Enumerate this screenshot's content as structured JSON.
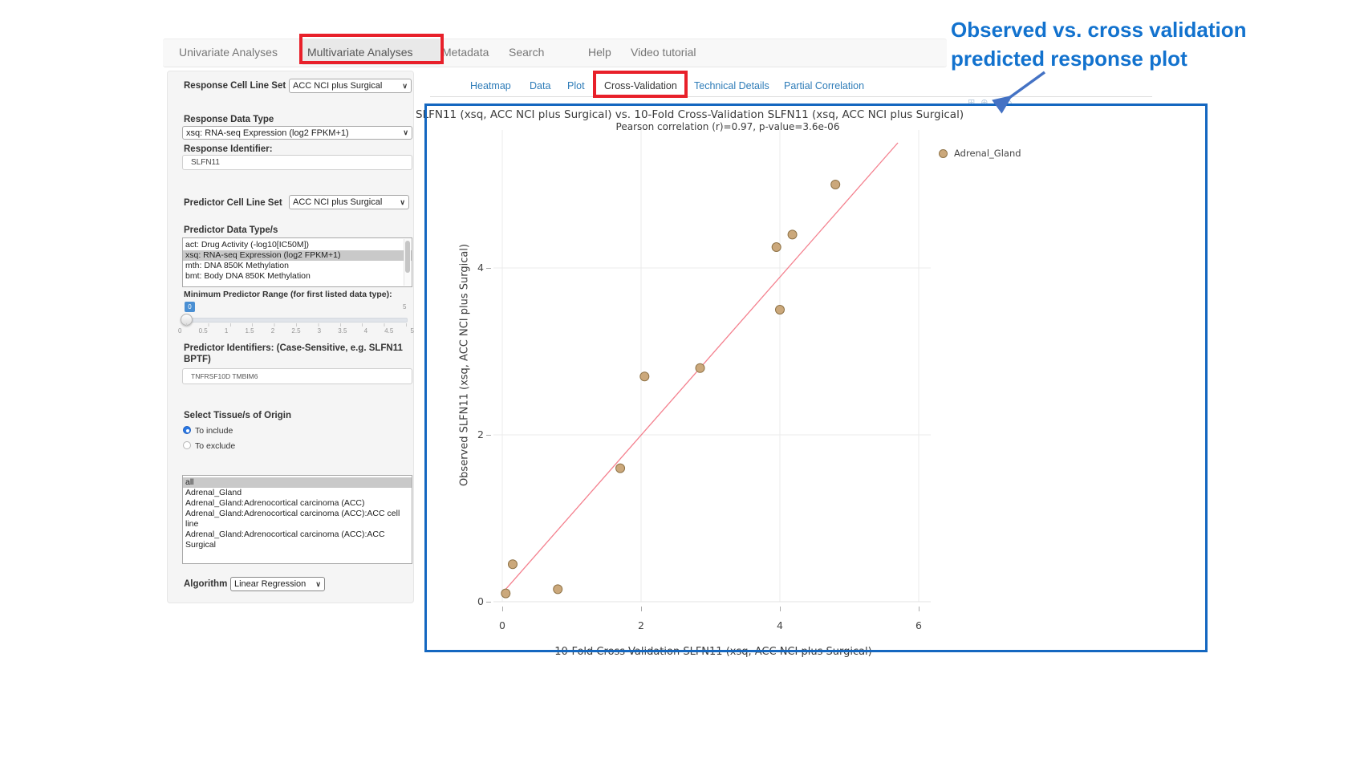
{
  "nav": {
    "items": [
      {
        "label": "Univariate Analyses",
        "active": false
      },
      {
        "label": "Multivariate Analyses",
        "active": true
      },
      {
        "label": "Metadata",
        "active": false
      },
      {
        "label": "Search",
        "active": false
      },
      {
        "label": "Help",
        "active": false
      },
      {
        "label": "Video tutorial",
        "active": false
      }
    ]
  },
  "tabs": {
    "items": [
      {
        "label": "Heatmap",
        "active": false
      },
      {
        "label": "Data",
        "active": false
      },
      {
        "label": "Plot",
        "active": false
      },
      {
        "label": "Cross-Validation",
        "active": true
      },
      {
        "label": "Technical Details",
        "active": false
      },
      {
        "label": "Partial Correlation",
        "active": false
      }
    ]
  },
  "sidebar": {
    "response_cell_line_set": {
      "label": "Response Cell Line Set",
      "value": "ACC NCI plus Surgical"
    },
    "response_data_type": {
      "label": "Response Data Type",
      "value": "xsq: RNA-seq Expression (log2 FPKM+1)"
    },
    "response_identifier": {
      "label": "Response Identifier:",
      "value": "SLFN11"
    },
    "predictor_cell_line_set": {
      "label": "Predictor Cell Line Set",
      "value": "ACC NCI plus Surgical"
    },
    "predictor_data_types": {
      "label": "Predictor Data Type/s",
      "options": [
        "act: Drug Activity (-log10[IC50M])",
        "xsq: RNA-seq Expression (log2 FPKM+1)",
        "mth: DNA 850K Methylation",
        "bmt: Body DNA 850K Methylation"
      ],
      "selected_index": 1
    },
    "min_predictor_range": {
      "label": "Minimum Predictor Range (for first listed data type):",
      "value": "0",
      "max_label": "5",
      "ticks": [
        "0",
        "0.5",
        "1",
        "1.5",
        "2",
        "2.5",
        "3",
        "3.5",
        "4",
        "4.5",
        "5"
      ]
    },
    "predictor_identifiers": {
      "label": "Predictor Identifiers: (Case-Sensitive, e.g. SLFN11 BPTF)",
      "value": "TNFRSF10D TMBIM6"
    },
    "tissue_origin": {
      "label": "Select Tissue/s of Origin",
      "radio_include": "To include",
      "radio_exclude": "To exclude",
      "selected": "To include",
      "options": [
        "all",
        "Adrenal_Gland",
        "Adrenal_Gland:Adrenocortical carcinoma (ACC)",
        "Adrenal_Gland:Adrenocortical carcinoma (ACC):ACC cell line",
        "Adrenal_Gland:Adrenocortical carcinoma (ACC):ACC Surgical"
      ],
      "selected_index": 0
    },
    "algorithm": {
      "label": "Algorithm",
      "value": "Linear Regression"
    }
  },
  "callout": {
    "line1": "Observed vs. cross validation",
    "line2": "predicted response plot",
    "text_color": "#1272ce",
    "arrow_color": "#4472c4",
    "highlight_red": "#e8202a",
    "highlight_blue": "#1467c0"
  },
  "chart_data": {
    "type": "scatter",
    "title": "SLFN11 (xsq, ACC NCI plus Surgical) vs. 10-Fold Cross-Validation SLFN11 (xsq, ACC NCI plus Surgical)",
    "subtitle": "Pearson correlation (r)=0.97, p-value=3.6e-06",
    "xlabel": "10-Fold Cross-Validation SLFN11 (xsq, ACC NCI plus Surgical)",
    "ylabel": "Observed SLFN11 (xsq, ACC NCI plus Surgical)",
    "xlim": [
      -0.13,
      6.2
    ],
    "ylim": [
      0,
      5.65
    ],
    "xticks": [
      0,
      2,
      4,
      6
    ],
    "yticks": [
      0,
      2,
      4
    ],
    "grid": true,
    "legend_label": "Adrenal_Gland",
    "legend_position": "top-right",
    "point_color": "#cba87b",
    "point_edge_color": "#8f7347",
    "line_color": "#f4808e",
    "grid_color": "#ebebeb",
    "points": [
      [
        0.05,
        0.1
      ],
      [
        0.15,
        0.45
      ],
      [
        0.8,
        0.15
      ],
      [
        1.7,
        1.6
      ],
      [
        2.05,
        2.7
      ],
      [
        2.85,
        2.8
      ],
      [
        3.95,
        4.25
      ],
      [
        4.0,
        3.5
      ],
      [
        4.18,
        4.4
      ],
      [
        4.8,
        5.0
      ]
    ],
    "fit_line": {
      "x1": 0.05,
      "y1": 0.15,
      "x2": 5.7,
      "y2": 5.5
    }
  }
}
